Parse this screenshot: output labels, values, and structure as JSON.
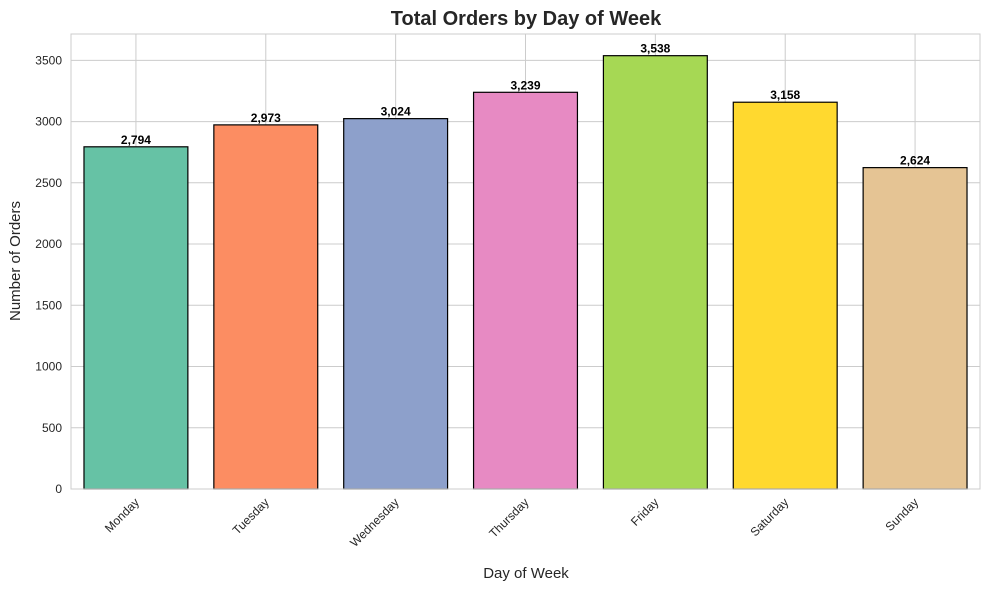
{
  "chart_data": {
    "type": "bar",
    "title": "Total Orders by Day of Week",
    "xlabel": "Day of Week",
    "ylabel": "Number of Orders",
    "categories": [
      "Monday",
      "Tuesday",
      "Wednesday",
      "Thursday",
      "Friday",
      "Saturday",
      "Sunday"
    ],
    "values": [
      2794,
      2973,
      3024,
      3239,
      3538,
      3158,
      2624
    ],
    "value_labels": [
      "2,794",
      "2,973",
      "3,024",
      "3,239",
      "3,538",
      "3,158",
      "2,624"
    ],
    "colors": [
      "#66c2a5",
      "#fc8d62",
      "#8da0cb",
      "#e78ac3",
      "#a6d854",
      "#ffd92f",
      "#e5c494"
    ],
    "yticks": [
      0,
      500,
      1000,
      1500,
      2000,
      2500,
      3000,
      3500
    ],
    "ylim": [
      0,
      3715
    ],
    "grid": true,
    "edge_color": "#000000"
  }
}
